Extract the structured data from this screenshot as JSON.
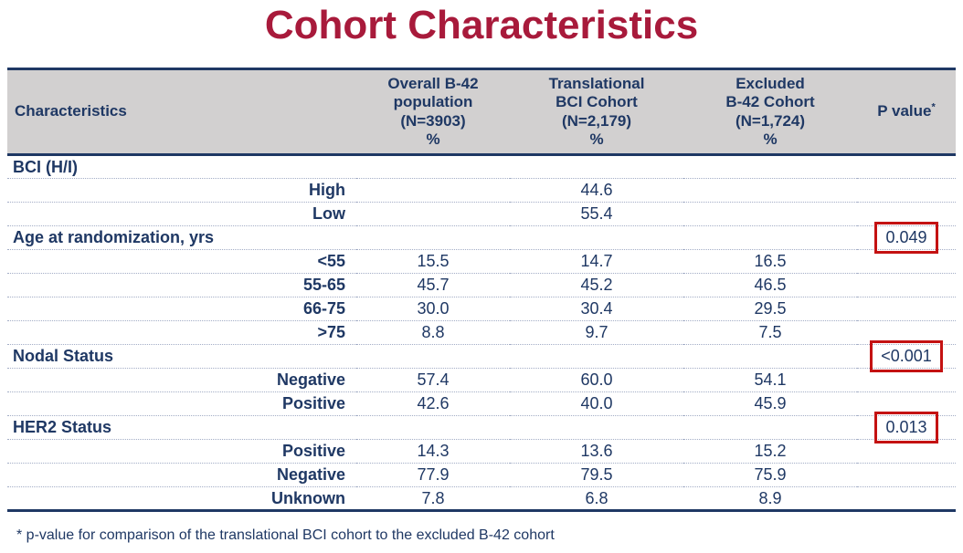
{
  "slide": {
    "title": "Cohort Characteristics",
    "footnote": "* p-value for comparison of the translational BCI cohort to the excluded B-42 cohort"
  },
  "colors": {
    "title_red": "#A81A3B",
    "navy_text": "#1F3864",
    "header_bg": "#D2D0D0",
    "p_box_border_red": "#C41212",
    "row_divider": "#A3ADC6"
  },
  "table": {
    "headers": {
      "characteristics": "Characteristics",
      "overall": "Overall B-42\npopulation\n(N=3903)\n%",
      "translational": "Translational\nBCI Cohort\n(N=2,179)\n%",
      "excluded": "Excluded\nB-42 Cohort\n(N=1,724)\n%",
      "p_value": "P value",
      "p_value_superscript": "*"
    },
    "rows": [
      {
        "label": "BCI (H/I)",
        "type": "section",
        "overall": "",
        "translational": "",
        "excluded": "",
        "p": "",
        "p_boxed": false
      },
      {
        "label": "High",
        "type": "sub",
        "overall": "",
        "translational": "44.6",
        "excluded": "",
        "p": "",
        "p_boxed": false
      },
      {
        "label": "Low",
        "type": "sub",
        "overall": "",
        "translational": "55.4",
        "excluded": "",
        "p": "",
        "p_boxed": false
      },
      {
        "label": "Age at randomization, yrs",
        "type": "section",
        "overall": "",
        "translational": "",
        "excluded": "",
        "p": "0.049",
        "p_boxed": true
      },
      {
        "label": "<55",
        "type": "sub",
        "overall": "15.5",
        "translational": "14.7",
        "excluded": "16.5",
        "p": "",
        "p_boxed": false
      },
      {
        "label": "55-65",
        "type": "sub",
        "overall": "45.7",
        "translational": "45.2",
        "excluded": "46.5",
        "p": "",
        "p_boxed": false
      },
      {
        "label": "66-75",
        "type": "sub",
        "overall": "30.0",
        "translational": "30.4",
        "excluded": "29.5",
        "p": "",
        "p_boxed": false
      },
      {
        "label": ">75",
        "type": "sub",
        "overall": "8.8",
        "translational": "9.7",
        "excluded": "7.5",
        "p": "",
        "p_boxed": false
      },
      {
        "label": "Nodal Status",
        "type": "section",
        "overall": "",
        "translational": "",
        "excluded": "",
        "p": "<0.001",
        "p_boxed": true
      },
      {
        "label": "Negative",
        "type": "sub",
        "overall": "57.4",
        "translational": "60.0",
        "excluded": "54.1",
        "p": "",
        "p_boxed": false
      },
      {
        "label": "Positive",
        "type": "sub",
        "overall": "42.6",
        "translational": "40.0",
        "excluded": "45.9",
        "p": "",
        "p_boxed": false
      },
      {
        "label": "HER2 Status",
        "type": "section",
        "overall": "",
        "translational": "",
        "excluded": "",
        "p": "0.013",
        "p_boxed": true
      },
      {
        "label": "Positive",
        "type": "sub",
        "overall": "14.3",
        "translational": "13.6",
        "excluded": "15.2",
        "p": "",
        "p_boxed": false
      },
      {
        "label": "Negative",
        "type": "sub",
        "overall": "77.9",
        "translational": "79.5",
        "excluded": "75.9",
        "p": "",
        "p_boxed": false
      },
      {
        "label": "Unknown",
        "type": "sub",
        "overall": "7.8",
        "translational": "6.8",
        "excluded": "8.9",
        "p": "",
        "p_boxed": false
      }
    ]
  }
}
